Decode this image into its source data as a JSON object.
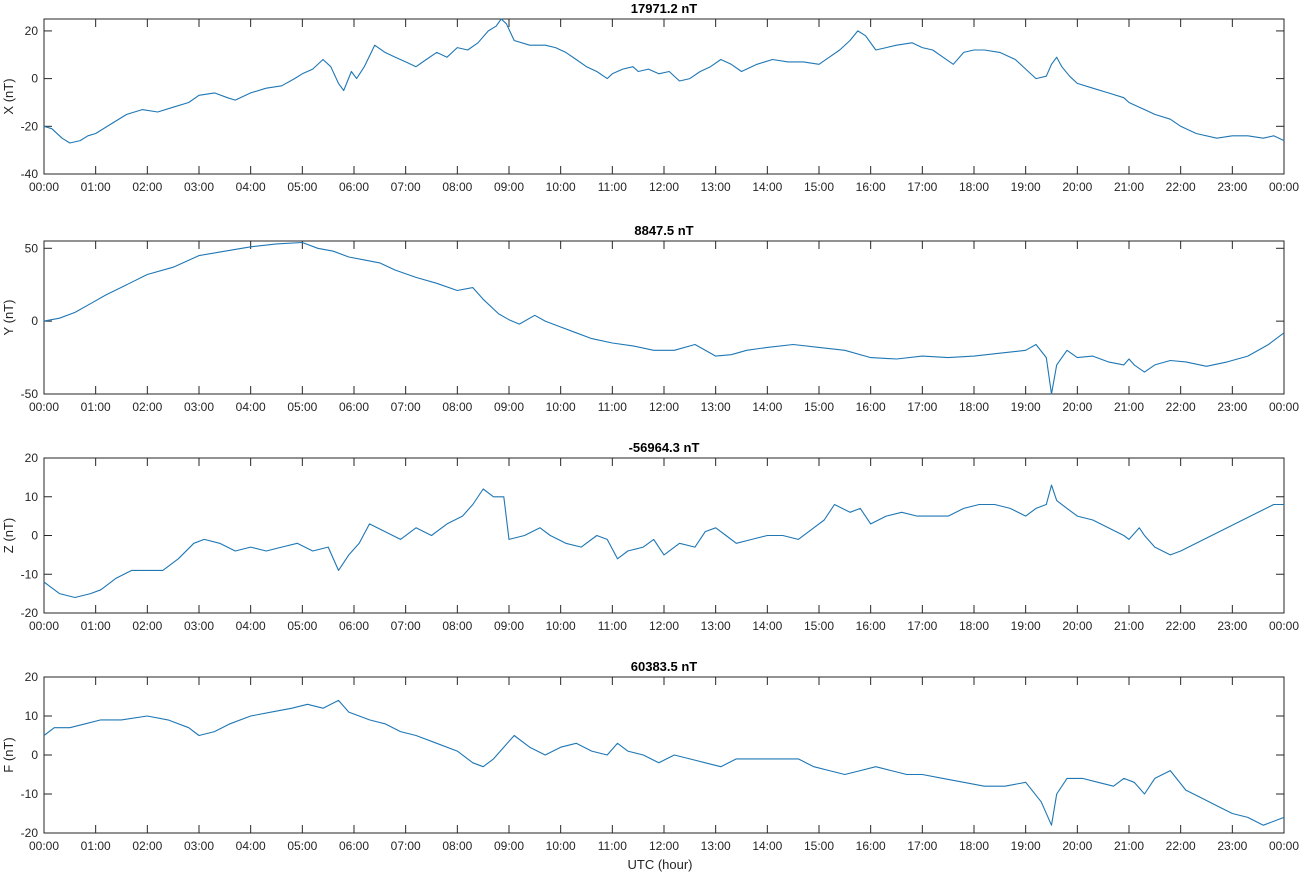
{
  "figure": {
    "xlabel": "UTC (hour)",
    "line_color": "#1f77b4",
    "axis_color": "#262626"
  },
  "chart_data": [
    {
      "type": "line",
      "title": "17971.2 nT",
      "ylabel": "X (nT)",
      "ylim": [
        -40,
        25
      ],
      "yticks": [
        -40,
        -20,
        0,
        20
      ],
      "xlim": [
        0,
        24
      ],
      "xticks": [
        "00:00",
        "01:00",
        "02:00",
        "03:00",
        "04:00",
        "05:00",
        "06:00",
        "07:00",
        "08:00",
        "09:00",
        "10:00",
        "11:00",
        "12:00",
        "13:00",
        "14:00",
        "15:00",
        "16:00",
        "17:00",
        "18:00",
        "19:00",
        "20:00",
        "21:00",
        "22:00",
        "23:00",
        "00:00"
      ],
      "grid": false,
      "series": [
        {
          "x": [
            0,
            0.15,
            0.35,
            0.5,
            0.7,
            0.85,
            1.0,
            1.3,
            1.6,
            1.9,
            2.2,
            2.5,
            2.8,
            3.0,
            3.3,
            3.55,
            3.7,
            4.0,
            4.3,
            4.6,
            4.85,
            5.0,
            5.2,
            5.4,
            5.55,
            5.7,
            5.8,
            5.95,
            6.05,
            6.2,
            6.4,
            6.6,
            6.8,
            7.0,
            7.2,
            7.4,
            7.6,
            7.8,
            8.0,
            8.2,
            8.4,
            8.6,
            8.75,
            8.85,
            8.95,
            9.1,
            9.4,
            9.7,
            9.9,
            10.1,
            10.3,
            10.5,
            10.7,
            10.9,
            11.0,
            11.2,
            11.4,
            11.5,
            11.7,
            11.9,
            12.1,
            12.3,
            12.5,
            12.7,
            12.9,
            13.1,
            13.3,
            13.5,
            13.8,
            14.1,
            14.4,
            14.7,
            15.0,
            15.2,
            15.4,
            15.6,
            15.75,
            15.9,
            16.1,
            16.3,
            16.5,
            16.8,
            17.0,
            17.2,
            17.4,
            17.6,
            17.8,
            18.0,
            18.2,
            18.5,
            18.8,
            19.0,
            19.2,
            19.4,
            19.5,
            19.6,
            19.7,
            19.85,
            20.0,
            20.3,
            20.6,
            20.9,
            21.0,
            21.2,
            21.5,
            21.8,
            22.0,
            22.3,
            22.7,
            23.0,
            23.3,
            23.6,
            23.8,
            24.0
          ],
          "y": [
            -20,
            -21,
            -25,
            -27,
            -26,
            -24,
            -23,
            -19,
            -15,
            -13,
            -14,
            -12,
            -10,
            -7,
            -6,
            -8,
            -9,
            -6,
            -4,
            -3,
            0,
            2,
            4,
            8,
            5,
            -2,
            -5,
            3,
            0,
            5,
            14,
            11,
            9,
            7,
            5,
            8,
            11,
            9,
            13,
            12,
            15,
            20,
            22,
            25,
            23,
            16,
            14,
            14,
            13,
            11,
            8,
            5,
            3,
            0,
            2,
            4,
            5,
            3,
            4,
            2,
            3,
            -1,
            0,
            3,
            5,
            8,
            6,
            3,
            6,
            8,
            7,
            7,
            6,
            9,
            12,
            16,
            20,
            18,
            12,
            13,
            14,
            15,
            13,
            12,
            9,
            6,
            11,
            12,
            12,
            11,
            8,
            4,
            0,
            1,
            6,
            9,
            5,
            1,
            -2,
            -4,
            -6,
            -8,
            -10,
            -12,
            -15,
            -17,
            -20,
            -23,
            -25,
            -24,
            -24,
            -25,
            -24,
            -26
          ]
        }
      ]
    },
    {
      "type": "line",
      "title": "8847.5 nT",
      "ylabel": "Y (nT)",
      "ylim": [
        -50,
        55
      ],
      "yticks": [
        -50,
        0,
        50
      ],
      "xlim": [
        0,
        24
      ],
      "xticks": [
        "00:00",
        "01:00",
        "02:00",
        "03:00",
        "04:00",
        "05:00",
        "06:00",
        "07:00",
        "08:00",
        "09:00",
        "10:00",
        "11:00",
        "12:00",
        "13:00",
        "14:00",
        "15:00",
        "16:00",
        "17:00",
        "18:00",
        "19:00",
        "20:00",
        "21:00",
        "22:00",
        "23:00",
        "00:00"
      ],
      "grid": false,
      "series": [
        {
          "x": [
            0,
            0.3,
            0.6,
            0.9,
            1.2,
            1.6,
            2.0,
            2.5,
            3.0,
            3.5,
            4.0,
            4.5,
            5.0,
            5.3,
            5.6,
            5.9,
            6.2,
            6.5,
            6.8,
            7.2,
            7.6,
            8.0,
            8.3,
            8.5,
            8.8,
            9.0,
            9.2,
            9.5,
            9.7,
            10.0,
            10.3,
            10.6,
            11.0,
            11.4,
            11.8,
            12.2,
            12.6,
            13.0,
            13.3,
            13.6,
            14.0,
            14.5,
            15.0,
            15.5,
            16.0,
            16.5,
            17.0,
            17.5,
            18.0,
            18.5,
            19.0,
            19.2,
            19.4,
            19.5,
            19.6,
            19.8,
            20.0,
            20.3,
            20.6,
            20.9,
            21.0,
            21.1,
            21.3,
            21.5,
            21.8,
            22.1,
            22.5,
            22.9,
            23.3,
            23.7,
            24.0
          ],
          "y": [
            0,
            2,
            6,
            12,
            18,
            25,
            32,
            37,
            45,
            48,
            51,
            53,
            54,
            50,
            48,
            44,
            42,
            40,
            35,
            30,
            26,
            21,
            23,
            15,
            5,
            1,
            -2,
            4,
            0,
            -4,
            -8,
            -12,
            -15,
            -17,
            -20,
            -20,
            -16,
            -24,
            -23,
            -20,
            -18,
            -16,
            -18,
            -20,
            -25,
            -26,
            -24,
            -25,
            -24,
            -22,
            -20,
            -16,
            -25,
            -50,
            -30,
            -20,
            -25,
            -24,
            -28,
            -30,
            -26,
            -30,
            -35,
            -30,
            -27,
            -28,
            -31,
            -28,
            -24,
            -16,
            -8
          ]
        }
      ]
    },
    {
      "type": "line",
      "title": "-56964.3 nT",
      "ylabel": "Z (nT)",
      "ylim": [
        -20,
        20
      ],
      "yticks": [
        -20,
        -10,
        0,
        10,
        20
      ],
      "xlim": [
        0,
        24
      ],
      "xticks": [
        "00:00",
        "01:00",
        "02:00",
        "03:00",
        "04:00",
        "05:00",
        "06:00",
        "07:00",
        "08:00",
        "09:00",
        "10:00",
        "11:00",
        "12:00",
        "13:00",
        "14:00",
        "15:00",
        "16:00",
        "17:00",
        "18:00",
        "19:00",
        "20:00",
        "21:00",
        "22:00",
        "23:00",
        "00:00"
      ],
      "grid": false,
      "series": [
        {
          "x": [
            0,
            0.1,
            0.3,
            0.6,
            0.9,
            1.1,
            1.4,
            1.7,
            2.0,
            2.3,
            2.6,
            2.9,
            3.1,
            3.4,
            3.7,
            4.0,
            4.3,
            4.6,
            4.9,
            5.2,
            5.5,
            5.7,
            5.9,
            6.1,
            6.3,
            6.6,
            6.9,
            7.2,
            7.5,
            7.8,
            8.1,
            8.3,
            8.5,
            8.7,
            8.9,
            9.0,
            9.3,
            9.6,
            9.8,
            10.1,
            10.4,
            10.7,
            10.9,
            11.1,
            11.3,
            11.6,
            11.8,
            12.0,
            12.3,
            12.6,
            12.8,
            13.0,
            13.2,
            13.4,
            13.7,
            14.0,
            14.3,
            14.6,
            14.9,
            15.1,
            15.3,
            15.6,
            15.8,
            16.0,
            16.3,
            16.6,
            16.9,
            17.2,
            17.5,
            17.8,
            18.1,
            18.4,
            18.7,
            19.0,
            19.2,
            19.4,
            19.5,
            19.6,
            19.8,
            20.0,
            20.3,
            20.6,
            20.9,
            21.0,
            21.2,
            21.3,
            21.5,
            21.8,
            22.0,
            22.3,
            22.6,
            22.9,
            23.2,
            23.5,
            23.8,
            24.0
          ],
          "y": [
            -12,
            -13,
            -15,
            -16,
            -15,
            -14,
            -11,
            -9,
            -9,
            -9,
            -6,
            -2,
            -1,
            -2,
            -4,
            -3,
            -4,
            -3,
            -2,
            -4,
            -3,
            -9,
            -5,
            -2,
            3,
            1,
            -1,
            2,
            0,
            3,
            5,
            8,
            12,
            10,
            10,
            -1,
            0,
            2,
            0,
            -2,
            -3,
            0,
            -1,
            -6,
            -4,
            -3,
            -1,
            -5,
            -2,
            -3,
            1,
            2,
            0,
            -2,
            -1,
            0,
            0,
            -1,
            2,
            4,
            8,
            6,
            7,
            3,
            5,
            6,
            5,
            5,
            5,
            7,
            8,
            8,
            7,
            5,
            7,
            8,
            13,
            9,
            7,
            5,
            4,
            2,
            0,
            -1,
            2,
            0,
            -3,
            -5,
            -4,
            -2,
            0,
            2,
            4,
            6,
            8,
            8
          ]
        }
      ]
    },
    {
      "type": "line",
      "title": "60383.5 nT",
      "ylabel": "F (nT)",
      "ylim": [
        -20,
        20
      ],
      "yticks": [
        -20,
        -10,
        0,
        10,
        20
      ],
      "xlim": [
        0,
        24
      ],
      "xticks": [
        "00:00",
        "01:00",
        "02:00",
        "03:00",
        "04:00",
        "05:00",
        "06:00",
        "07:00",
        "08:00",
        "09:00",
        "10:00",
        "11:00",
        "12:00",
        "13:00",
        "14:00",
        "15:00",
        "16:00",
        "17:00",
        "18:00",
        "19:00",
        "20:00",
        "21:00",
        "22:00",
        "23:00",
        "00:00"
      ],
      "grid": false,
      "series": [
        {
          "x": [
            0,
            0.2,
            0.5,
            0.8,
            1.1,
            1.5,
            2.0,
            2.4,
            2.8,
            3.0,
            3.3,
            3.6,
            4.0,
            4.4,
            4.8,
            5.1,
            5.4,
            5.7,
            5.9,
            6.1,
            6.3,
            6.6,
            6.9,
            7.2,
            7.6,
            8.0,
            8.3,
            8.5,
            8.7,
            8.9,
            9.1,
            9.4,
            9.7,
            10.0,
            10.3,
            10.6,
            10.9,
            11.1,
            11.3,
            11.6,
            11.9,
            12.2,
            12.5,
            12.8,
            13.1,
            13.4,
            13.7,
            14.0,
            14.3,
            14.6,
            14.9,
            15.2,
            15.5,
            15.8,
            16.1,
            16.4,
            16.7,
            17.0,
            17.4,
            17.8,
            18.2,
            18.6,
            19.0,
            19.3,
            19.5,
            19.6,
            19.8,
            20.1,
            20.4,
            20.7,
            20.9,
            21.1,
            21.3,
            21.5,
            21.8,
            22.1,
            22.4,
            22.7,
            23.0,
            23.3,
            23.6,
            24.0
          ],
          "y": [
            5,
            7,
            7,
            8,
            9,
            9,
            10,
            9,
            7,
            5,
            6,
            8,
            10,
            11,
            12,
            13,
            12,
            14,
            11,
            10,
            9,
            8,
            6,
            5,
            3,
            1,
            -2,
            -3,
            -1,
            2,
            5,
            2,
            0,
            2,
            3,
            1,
            0,
            3,
            1,
            0,
            -2,
            0,
            -1,
            -2,
            -3,
            -1,
            -1,
            -1,
            -1,
            -1,
            -3,
            -4,
            -5,
            -4,
            -3,
            -4,
            -5,
            -5,
            -6,
            -7,
            -8,
            -8,
            -7,
            -12,
            -18,
            -10,
            -6,
            -6,
            -7,
            -8,
            -6,
            -7,
            -10,
            -6,
            -4,
            -9,
            -11,
            -13,
            -15,
            -16,
            -18,
            -16
          ]
        }
      ]
    }
  ]
}
